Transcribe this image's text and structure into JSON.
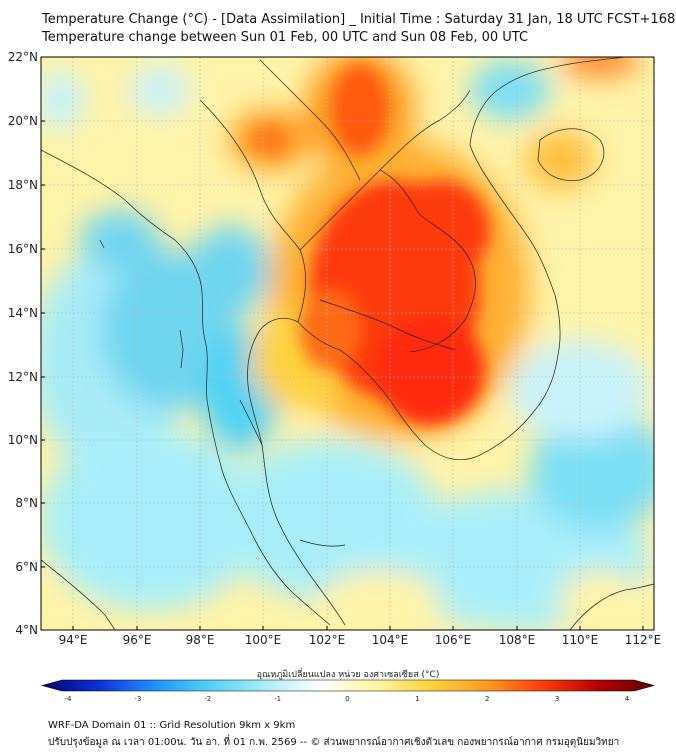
{
  "header": {
    "title_line1": "Temperature Change (°C) - [Data Assimilation] _ Initial Time : Saturday 31 Jan, 18 UTC FCST+168",
    "title_line2": "Temperature change between Sun 01 Feb, 00 UTC and Sun 08 Feb, 00 UTC"
  },
  "map": {
    "lat_labels": [
      "22°N",
      "20°N",
      "18°N",
      "16°N",
      "14°N",
      "12°N",
      "10°N",
      "8°N",
      "6°N",
      "4°N"
    ],
    "lon_labels": [
      "94°E",
      "96°E",
      "98°E",
      "100°E",
      "102°E",
      "104°E",
      "106°E",
      "108°E",
      "110°E",
      "112°E"
    ],
    "field": "temperature change"
  },
  "colorbar": {
    "label": "อุณหภูมิเปลี่ยนแปลง หน่วย องศาเซลเซียส (°C)",
    "ticks": [
      "-4",
      "-3",
      "-2",
      "-1",
      "0",
      "1",
      "2",
      "3",
      "4"
    ],
    "min": -4,
    "max": 4,
    "colors": [
      "#08006e",
      "#0a2fd8",
      "#1e90ff",
      "#4fd2f5",
      "#a8eef8",
      "#ffffff",
      "#fff6a0",
      "#ffd23c",
      "#ff9a1e",
      "#ff3a0a",
      "#b80000",
      "#5a0000"
    ]
  },
  "footer": {
    "line1": "WRF-DA Domain 01 :: Grid Resolution 9km x 9km",
    "line2": "ปรับปรุงข้อมูล ณ เวลา 01:00น. วัน อา. ที่ 01 ก.พ. 2569 -- © ส่วนพยากรณ์อากาศเชิงตัวเลข กองพยากรณ์อากาศ กรมอุตุนิยมวิทยา"
  }
}
